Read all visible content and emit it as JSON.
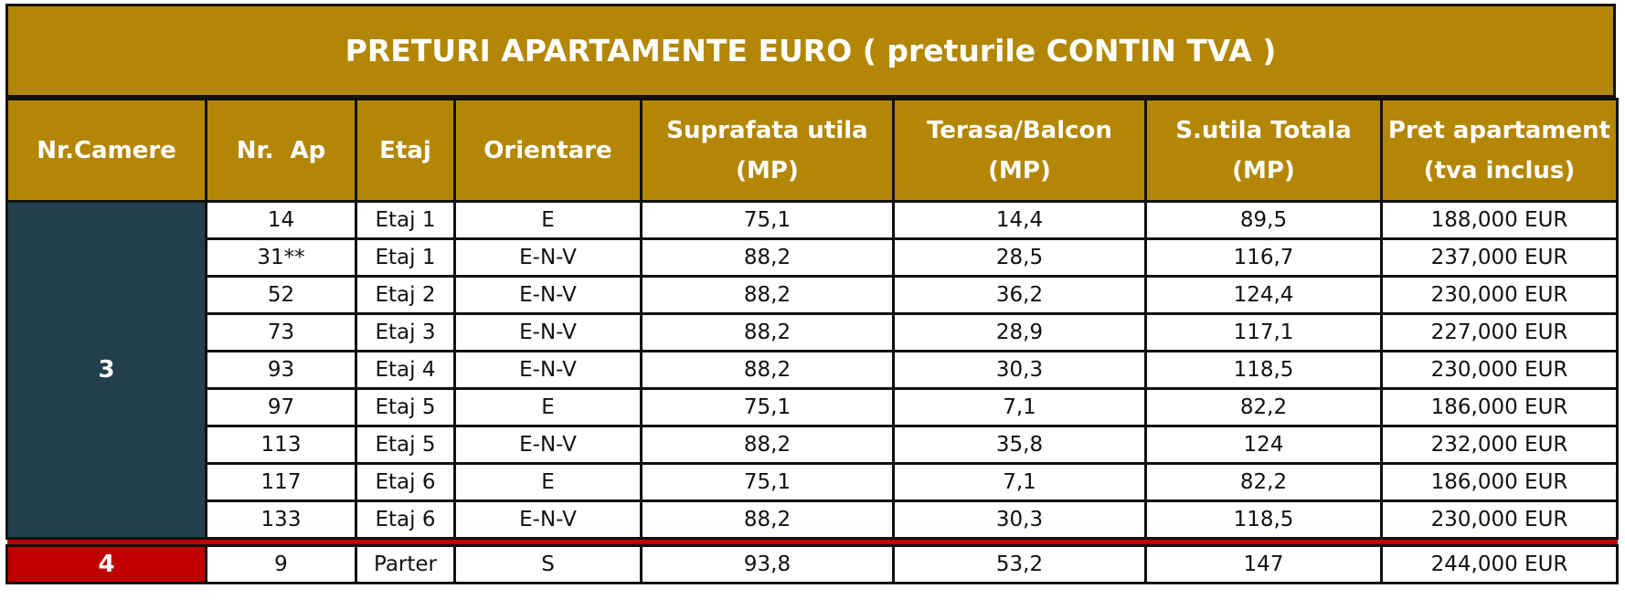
{
  "title": "PRETURI APARTAMENTE EURO ( preturile CONTIN TVA )",
  "headers": {
    "rooms": "Nr.Camere",
    "apt": "Nr.  Ap",
    "floor": "Etaj",
    "orientation": "Orientare",
    "usable_line1": "Suprafata utila",
    "usable_line2": "(MP)",
    "terrace_line1": "Terasa/Balcon",
    "terrace_line2": "(MP)",
    "total_line1": "S.utila Totala",
    "total_line2": "(MP)",
    "price_line1": "Pret apartament",
    "price_line2": "(tva inclus)"
  },
  "groups": [
    {
      "rooms": "3",
      "color": "#243f4c",
      "rows": [
        {
          "apt": "14",
          "floor": "Etaj 1",
          "orientation": "E",
          "usable": "75,1",
          "terrace": "14,4",
          "total": "89,5",
          "price": "188,000 EUR"
        },
        {
          "apt": "31**",
          "floor": "Etaj 1",
          "orientation": "E-N-V",
          "usable": "88,2",
          "terrace": "28,5",
          "total": "116,7",
          "price": "237,000 EUR"
        },
        {
          "apt": "52",
          "floor": "Etaj 2",
          "orientation": "E-N-V",
          "usable": "88,2",
          "terrace": "36,2",
          "total": "124,4",
          "price": "230,000 EUR"
        },
        {
          "apt": "73",
          "floor": "Etaj 3",
          "orientation": "E-N-V",
          "usable": "88,2",
          "terrace": "28,9",
          "total": "117,1",
          "price": "227,000 EUR"
        },
        {
          "apt": "93",
          "floor": "Etaj 4",
          "orientation": "E-N-V",
          "usable": "88,2",
          "terrace": "30,3",
          "total": "118,5",
          "price": "230,000 EUR"
        },
        {
          "apt": "97",
          "floor": "Etaj 5",
          "orientation": "E",
          "usable": "75,1",
          "terrace": "7,1",
          "total": "82,2",
          "price": "186,000 EUR"
        },
        {
          "apt": "113",
          "floor": "Etaj 5",
          "orientation": "E-N-V",
          "usable": "88,2",
          "terrace": "35,8",
          "total": "124",
          "price": "232,000 EUR"
        },
        {
          "apt": "117",
          "floor": "Etaj 6",
          "orientation": "E",
          "usable": "75,1",
          "terrace": "7,1",
          "total": "82,2",
          "price": "186,000 EUR"
        },
        {
          "apt": "133",
          "floor": "Etaj 6",
          "orientation": "E-N-V",
          "usable": "88,2",
          "terrace": "30,3",
          "total": "118,5",
          "price": "230,000 EUR"
        }
      ]
    },
    {
      "rooms": "4",
      "color": "#c00000",
      "rows": [
        {
          "apt": "9",
          "floor": "Parter",
          "orientation": "S",
          "usable": "93,8",
          "terrace": "53,2",
          "total": "147",
          "price": "244,000 EUR"
        }
      ]
    }
  ],
  "colors": {
    "header_bg": "#b38705",
    "header_text": "#ffffff",
    "border": "#111111"
  }
}
